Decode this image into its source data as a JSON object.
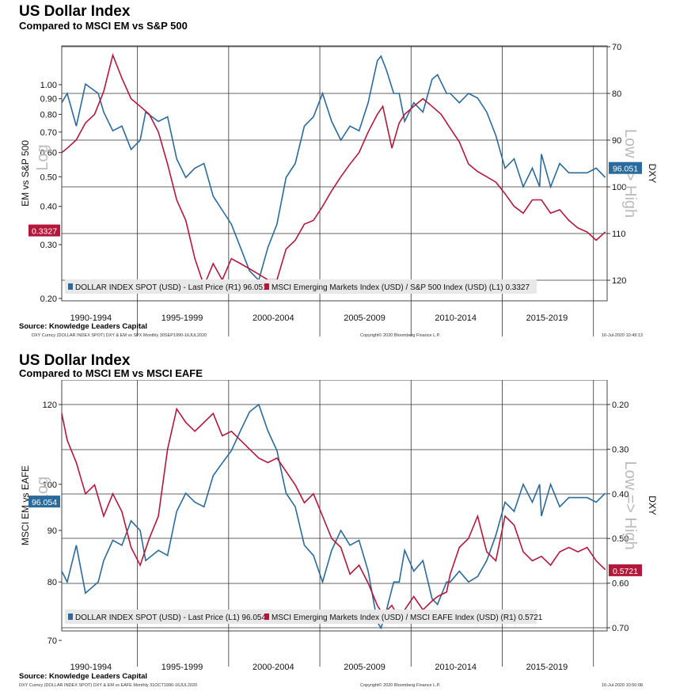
{
  "chart_data": [
    {
      "type": "line",
      "title": "US Dollar Index",
      "subtitle": "Compared to MSCI EM vs S&P 500",
      "left_axis_label": "EM vs S&P 500",
      "left_axis_note": "Log",
      "right_axis_label": "DXY",
      "right_axis_note": "Low => High",
      "left_ticks": [
        "1.00",
        "0.90",
        "0.80",
        "0.70",
        "0.60",
        "0.50",
        "0.40",
        "0.30",
        "0.20"
      ],
      "right_ticks": [
        "70",
        "80",
        "90",
        "100",
        "110",
        "120"
      ],
      "x_labels": [
        "1990-1994",
        "1995-1999",
        "2000-2004",
        "2005-2009",
        "2010-2014",
        "2015-2019"
      ],
      "legend": [
        {
          "label": "DOLLAR INDEX SPOT (USD) - Last Price (R1) 96.051",
          "color": "#2b6a9b"
        },
        {
          "label": "MSCI Emerging Markets Index (USD) / S&P 500 Index (USD) (L1) 0.3327",
          "color": "#b2183a"
        }
      ],
      "last_labels": {
        "left": "0.3327",
        "right": "96.051"
      },
      "series": [
        {
          "name": "DOLLAR INDEX SPOT (USD)",
          "axis": "right",
          "color": "#2b6a9b",
          "x": [
            1990.7,
            1991,
            1991.5,
            1992,
            1992.7,
            1993,
            1993.5,
            1994,
            1994.5,
            1995,
            1995.3,
            1996,
            1996.5,
            1997,
            1997.5,
            1998,
            1998.5,
            1999,
            1999.5,
            2000,
            2000.5,
            2001,
            2001.5,
            2002,
            2002.5,
            2003,
            2003.5,
            2004,
            2004.5,
            2005,
            2005.5,
            2006,
            2006.5,
            2007,
            2007.5,
            2008,
            2008.2,
            2008.5,
            2008.9,
            2009.2,
            2009.5,
            2010,
            2010.5,
            2011,
            2011.3,
            2011.8,
            2012,
            2012.5,
            2013,
            2013.5,
            2014,
            2014.5,
            2015,
            2015.5,
            2016,
            2016.5,
            2016.9,
            2017,
            2017.5,
            2018,
            2018.5,
            2019,
            2019.5,
            2020,
            2020.5
          ],
          "values": [
            82,
            80,
            87,
            78,
            80,
            84,
            88,
            87,
            92,
            90,
            84,
            86,
            85,
            94,
            98,
            96,
            95,
            102,
            105,
            108,
            113,
            118,
            120,
            113,
            108,
            98,
            95,
            87,
            85,
            80,
            86,
            90,
            87,
            88,
            82,
            73,
            72,
            75,
            80,
            80,
            86,
            82,
            84,
            77,
            76,
            80,
            80,
            82,
            80,
            81,
            84,
            89,
            96,
            94,
            100,
            96,
            100,
            93,
            100,
            95,
            97,
            97,
            97,
            96,
            98
          ]
        },
        {
          "name": "MSCI Emerging Markets Index (USD) / S&P 500 Index (USD)",
          "axis": "left",
          "color": "#b2183a",
          "x": [
            1990.7,
            1991,
            1991.5,
            1992,
            1992.5,
            1993,
            1993.5,
            1994,
            1994.5,
            1995,
            1995.5,
            1996,
            1996.5,
            1997,
            1997.5,
            1998,
            1998.5,
            1999,
            1999.5,
            2000,
            2000.5,
            2001,
            2001.5,
            2002,
            2002.5,
            2003,
            2003.5,
            2004,
            2004.5,
            2005,
            2005.5,
            2006,
            2006.5,
            2007,
            2007.5,
            2008,
            2008.3,
            2008.8,
            2009.2,
            2009.5,
            2010,
            2010.5,
            2011,
            2011.5,
            2012,
            2012.5,
            2013,
            2013.5,
            2014,
            2014.5,
            2015,
            2015.5,
            2016,
            2016.5,
            2017,
            2017.5,
            2018,
            2018.5,
            2019,
            2019.5,
            2020,
            2020.5
          ],
          "values": [
            0.6,
            0.62,
            0.66,
            0.75,
            0.8,
            0.95,
            1.25,
            1.05,
            0.9,
            0.85,
            0.8,
            0.7,
            0.55,
            0.42,
            0.36,
            0.27,
            0.22,
            0.26,
            0.23,
            0.27,
            0.26,
            0.25,
            0.24,
            0.23,
            0.23,
            0.29,
            0.31,
            0.35,
            0.36,
            0.4,
            0.45,
            0.5,
            0.55,
            0.6,
            0.7,
            0.8,
            0.85,
            0.62,
            0.75,
            0.8,
            0.85,
            0.9,
            0.85,
            0.8,
            0.72,
            0.65,
            0.55,
            0.52,
            0.5,
            0.48,
            0.44,
            0.4,
            0.38,
            0.42,
            0.42,
            0.38,
            0.39,
            0.36,
            0.34,
            0.33,
            0.31,
            0.33
          ]
        }
      ]
    },
    {
      "type": "line",
      "title": "US Dollar Index",
      "subtitle": "Compared to MSCI EM vs MSCI EAFE",
      "left_axis_label": "MSCI EM vs EAFE",
      "left_axis_note": "Log",
      "right_axis_label": "DXY",
      "right_axis_note": "Low => High",
      "left_ticks": [
        "120",
        "100",
        "90",
        "80",
        "70"
      ],
      "right_ticks": [
        "0.20",
        "0.30",
        "0.40",
        "0.50",
        "0.60",
        "0.70"
      ],
      "x_labels": [
        "1990-1994",
        "1995-1999",
        "2000-2004",
        "2005-2009",
        "2010-2014",
        "2015-2019"
      ],
      "legend": [
        {
          "label": "DOLLAR INDEX SPOT (USD) - Last Price (L1) 96.054",
          "color": "#2b6a9b"
        },
        {
          "label": "MSCI Emerging Markets Index (USD) / MSCI EAFE Index (USD) (R1) 0.5721",
          "color": "#b2183a"
        }
      ],
      "last_labels": {
        "left": "96.054",
        "right": "0.5721"
      },
      "series": [
        {
          "name": "DOLLAR INDEX SPOT (USD)",
          "axis": "left",
          "color": "#2b6a9b",
          "x": [
            1990.7,
            1991,
            1991.5,
            1992,
            1992.7,
            1993,
            1993.5,
            1994,
            1994.5,
            1995,
            1995.3,
            1996,
            1996.5,
            1997,
            1997.5,
            1998,
            1998.5,
            1999,
            1999.5,
            2000,
            2000.5,
            2001,
            2001.5,
            2002,
            2002.5,
            2003,
            2003.5,
            2004,
            2004.5,
            2005,
            2005.5,
            2006,
            2006.5,
            2007,
            2007.5,
            2008,
            2008.2,
            2008.5,
            2008.9,
            2009.2,
            2009.5,
            2010,
            2010.5,
            2011,
            2011.3,
            2011.8,
            2012,
            2012.5,
            2013,
            2013.5,
            2014,
            2014.5,
            2015,
            2015.5,
            2016,
            2016.5,
            2016.9,
            2017,
            2017.5,
            2018,
            2018.5,
            2019,
            2019.5,
            2020,
            2020.5
          ],
          "values": [
            82,
            80,
            87,
            78,
            80,
            84,
            88,
            87,
            92,
            90,
            84,
            86,
            85,
            94,
            98,
            96,
            95,
            102,
            105,
            108,
            113,
            118,
            120,
            113,
            108,
            98,
            95,
            87,
            85,
            80,
            86,
            90,
            87,
            88,
            82,
            73,
            72,
            75,
            80,
            80,
            86,
            82,
            84,
            77,
            76,
            80,
            80,
            82,
            80,
            81,
            84,
            89,
            96,
            94,
            100,
            96,
            100,
            93,
            100,
            95,
            97,
            97,
            97,
            96,
            98
          ]
        },
        {
          "name": "MSCI Emerging Markets Index (USD) / MSCI EAFE Index (USD)",
          "axis": "right",
          "color": "#b2183a",
          "x": [
            1990.7,
            1991,
            1991.5,
            1992,
            1992.5,
            1993,
            1993.5,
            1994,
            1994.5,
            1995,
            1995.5,
            1996,
            1996.5,
            1997,
            1997.5,
            1998,
            1998.5,
            1999,
            1999.5,
            2000,
            2000.5,
            2001,
            2001.5,
            2002,
            2002.5,
            2003,
            2003.5,
            2004,
            2004.5,
            2005,
            2005.5,
            2006,
            2006.5,
            2007,
            2007.5,
            2008,
            2008.3,
            2008.8,
            2009.2,
            2009.5,
            2010,
            2010.5,
            2011,
            2011.3,
            2011.8,
            2012,
            2012.5,
            2013,
            2013.5,
            2014,
            2014.5,
            2015,
            2015.5,
            2016,
            2016.5,
            2017,
            2017.5,
            2018,
            2018.5,
            2019,
            2019.5,
            2020,
            2020.5
          ],
          "values": [
            0.22,
            0.28,
            0.33,
            0.4,
            0.38,
            0.45,
            0.4,
            0.44,
            0.52,
            0.56,
            0.5,
            0.45,
            0.3,
            0.21,
            0.24,
            0.26,
            0.24,
            0.22,
            0.27,
            0.26,
            0.28,
            0.3,
            0.32,
            0.33,
            0.32,
            0.35,
            0.38,
            0.42,
            0.4,
            0.45,
            0.5,
            0.52,
            0.58,
            0.56,
            0.6,
            0.65,
            0.67,
            0.65,
            0.68,
            0.66,
            0.63,
            0.66,
            0.64,
            0.63,
            0.62,
            0.58,
            0.52,
            0.5,
            0.45,
            0.53,
            0.55,
            0.45,
            0.47,
            0.53,
            0.55,
            0.54,
            0.56,
            0.53,
            0.52,
            0.53,
            0.52,
            0.55,
            0.57
          ]
        }
      ]
    }
  ],
  "source_text": "Source: Knowledge Leaders Capital",
  "footer1": {
    "left": "DXY Curncy (DOLLAR INDEX SPOT) DXY & EM vs SPX  Monthly 30SEP1990-16JUL2020",
    "center": "Copyright© 2020 Bloomberg Finance L.P.",
    "right": "16-Jul-2020 10:49:13"
  },
  "footer2": {
    "left": "DXY Curncy (DOLLAR INDEX SPOT) DXY & EM vs EAFE  Monthly 31OCT1990-16JUL2020",
    "center": "Copyright© 2020 Bloomberg Finance L.P.",
    "right": "16-Jul-2020 10:50:08"
  }
}
